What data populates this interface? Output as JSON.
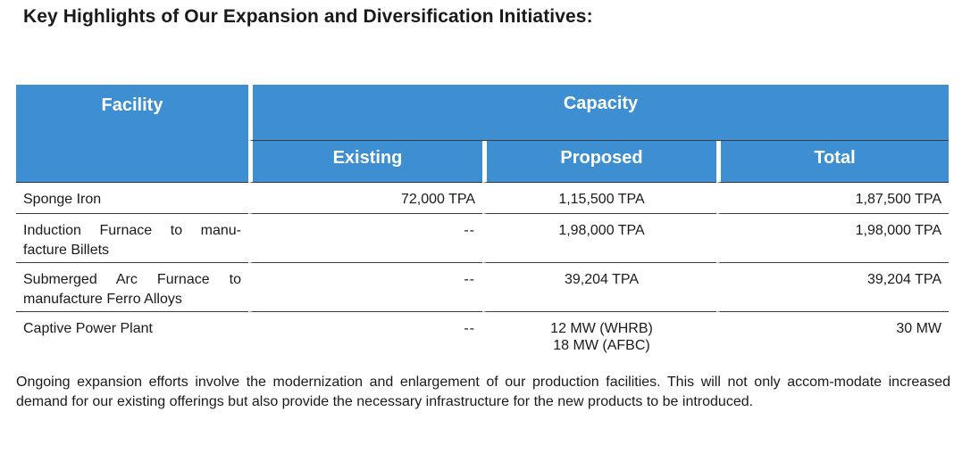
{
  "title": "Key Highlights of Our Expansion and Diversification Initiatives:",
  "table": {
    "header_facility": "Facility",
    "header_capacity": "Capacity",
    "sub_existing": "Existing",
    "sub_proposed": "Proposed",
    "sub_total": "Total",
    "rows": [
      {
        "facility": "Sponge Iron",
        "existing": "72,000 TPA",
        "proposed": "1,15,500 TPA",
        "proposed2": "",
        "total": "1,87,500 TPA"
      },
      {
        "facility": "Induction Furnace to manu-facture Billets",
        "existing": "--",
        "proposed": "1,98,000 TPA",
        "proposed2": "",
        "total": "1,98,000 TPA"
      },
      {
        "facility": "Submerged Arc Furnace to manufacture Ferro Alloys",
        "existing": "--",
        "proposed": "39,204 TPA",
        "proposed2": "",
        "total": "39,204 TPA"
      },
      {
        "facility": "Captive Power Plant",
        "existing": "--",
        "proposed": "12 MW (WHRB)",
        "proposed2": "18 MW (AFBC)",
        "total": "30 MW"
      }
    ]
  },
  "paragraph": "Ongoing expansion efforts involve the modernization and enlargement of our production facilities. This will not only accom-modate increased demand for our existing offerings but also provide the necessary infrastructure for the new products to be introduced."
}
